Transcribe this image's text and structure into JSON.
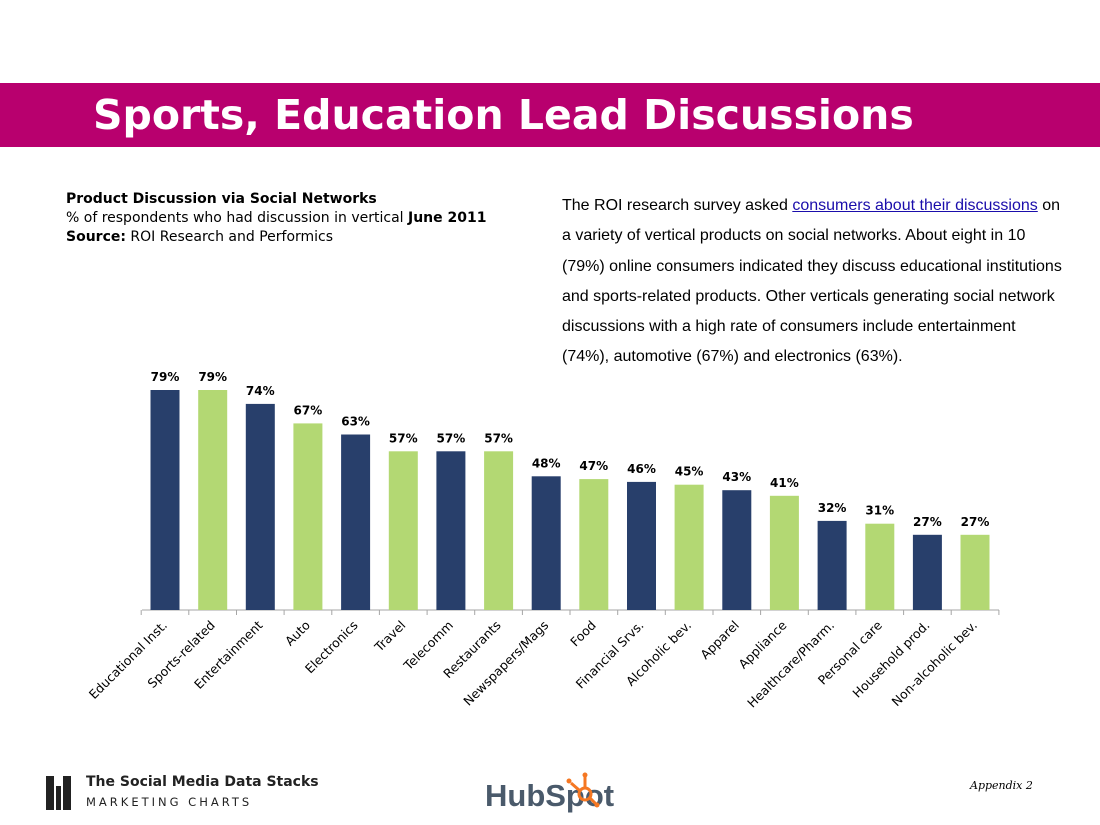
{
  "slide": {
    "title": "Sports, Education Lead Discussions",
    "title_band_color": "#b8006e"
  },
  "chart_info": {
    "heading": "Product Discussion via Social Networks",
    "subtitle_prefix": "% of respondents who had discussion in vertical ",
    "subtitle_date": "June 2011",
    "source_label": "Source:",
    "source_text": " ROI Research and Performics"
  },
  "description": {
    "before_link": "The ROI research survey asked ",
    "link_text": "consumers about their discussions",
    "after_link": " on a variety of vertical products on social networks. About eight in 10 (79%) online consumers indicated they discuss educational institutions and sports-related products. Other verticals generating social network discussions with a high rate of consumers include entertainment (74%), automotive (67%) and electronics (63%)."
  },
  "chart_data": {
    "type": "bar",
    "title": "Product Discussion via Social Networks",
    "categories": [
      "Educational Inst.",
      "Sports-related",
      "Entertainment",
      "Auto",
      "Electronics",
      "Travel",
      "Telecomm",
      "Restaurants",
      "Newspapers/Mags",
      "Food",
      "Financial Srvs.",
      "Alcoholic bev.",
      "Apparel",
      "Appliance",
      "Healthcare/Pharm.",
      "Personal care",
      "Household prod.",
      "Non-alcoholic bev."
    ],
    "values": [
      79,
      79,
      74,
      67,
      63,
      57,
      57,
      57,
      48,
      47,
      46,
      45,
      43,
      41,
      32,
      31,
      27,
      27
    ],
    "value_labels": [
      "79%",
      "79%",
      "74%",
      "67%",
      "63%",
      "57%",
      "57%",
      "57%",
      "48%",
      "47%",
      "46%",
      "45%",
      "43%",
      "41%",
      "32%",
      "31%",
      "27%",
      "27%"
    ],
    "colors": [
      "#283f6b",
      "#b3d873"
    ],
    "ylim": [
      0,
      100
    ],
    "grid": false,
    "legend": "none"
  },
  "footer": {
    "brand_line1": "The Social Media Data Stacks",
    "brand_line2": "MARKETING CHARTS",
    "hubspot_logo_text": "HubSpot",
    "hubspot_color": "#f57722",
    "appendix": "Appendix 2"
  }
}
